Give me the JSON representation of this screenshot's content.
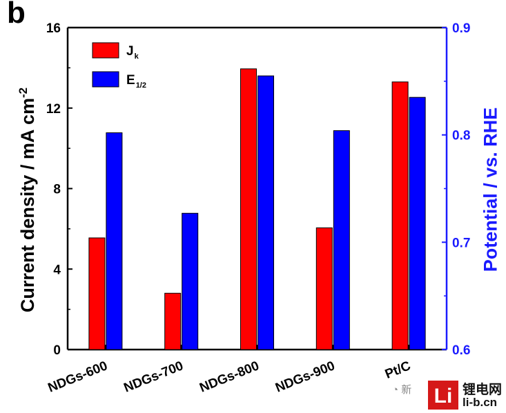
{
  "panel_label": "b",
  "chart_data": {
    "type": "bar",
    "categories": [
      "NDGs-600",
      "NDGs-700",
      "NDGs-800",
      "NDGs-900",
      "Pt/C"
    ],
    "series": [
      {
        "name": "Jk",
        "axis": "left",
        "color": "#ff0000",
        "values": [
          5.55,
          2.8,
          13.95,
          6.05,
          13.3
        ]
      },
      {
        "name": "E1/2",
        "axis": "right",
        "color": "#0000ff",
        "values": [
          0.802,
          0.727,
          0.855,
          0.804,
          0.835
        ]
      }
    ],
    "ylabel": "Current density / mA cm",
    "ylabel_superscript": "-2",
    "ylabel_right": "Potential / vs. RHE",
    "ylim": [
      0,
      16
    ],
    "yticks": [
      "0",
      "4",
      "8",
      "12",
      "16"
    ],
    "ylim_right": [
      0.6,
      0.9
    ],
    "yticks_right": [
      "0.6",
      "0.7",
      "0.8",
      "0.9"
    ],
    "right_axis_color": "#1a1aff",
    "legend_placement": "top-left",
    "grid": false
  },
  "legend": {
    "jk_main": "J",
    "jk_sub": "k",
    "e_main": "E",
    "e_sub": "1/2"
  },
  "watermark": {
    "wechat_text": "新",
    "logo_glyph": "Li",
    "text_cn": "锂电网",
    "text_url": "li-b.cn"
  }
}
